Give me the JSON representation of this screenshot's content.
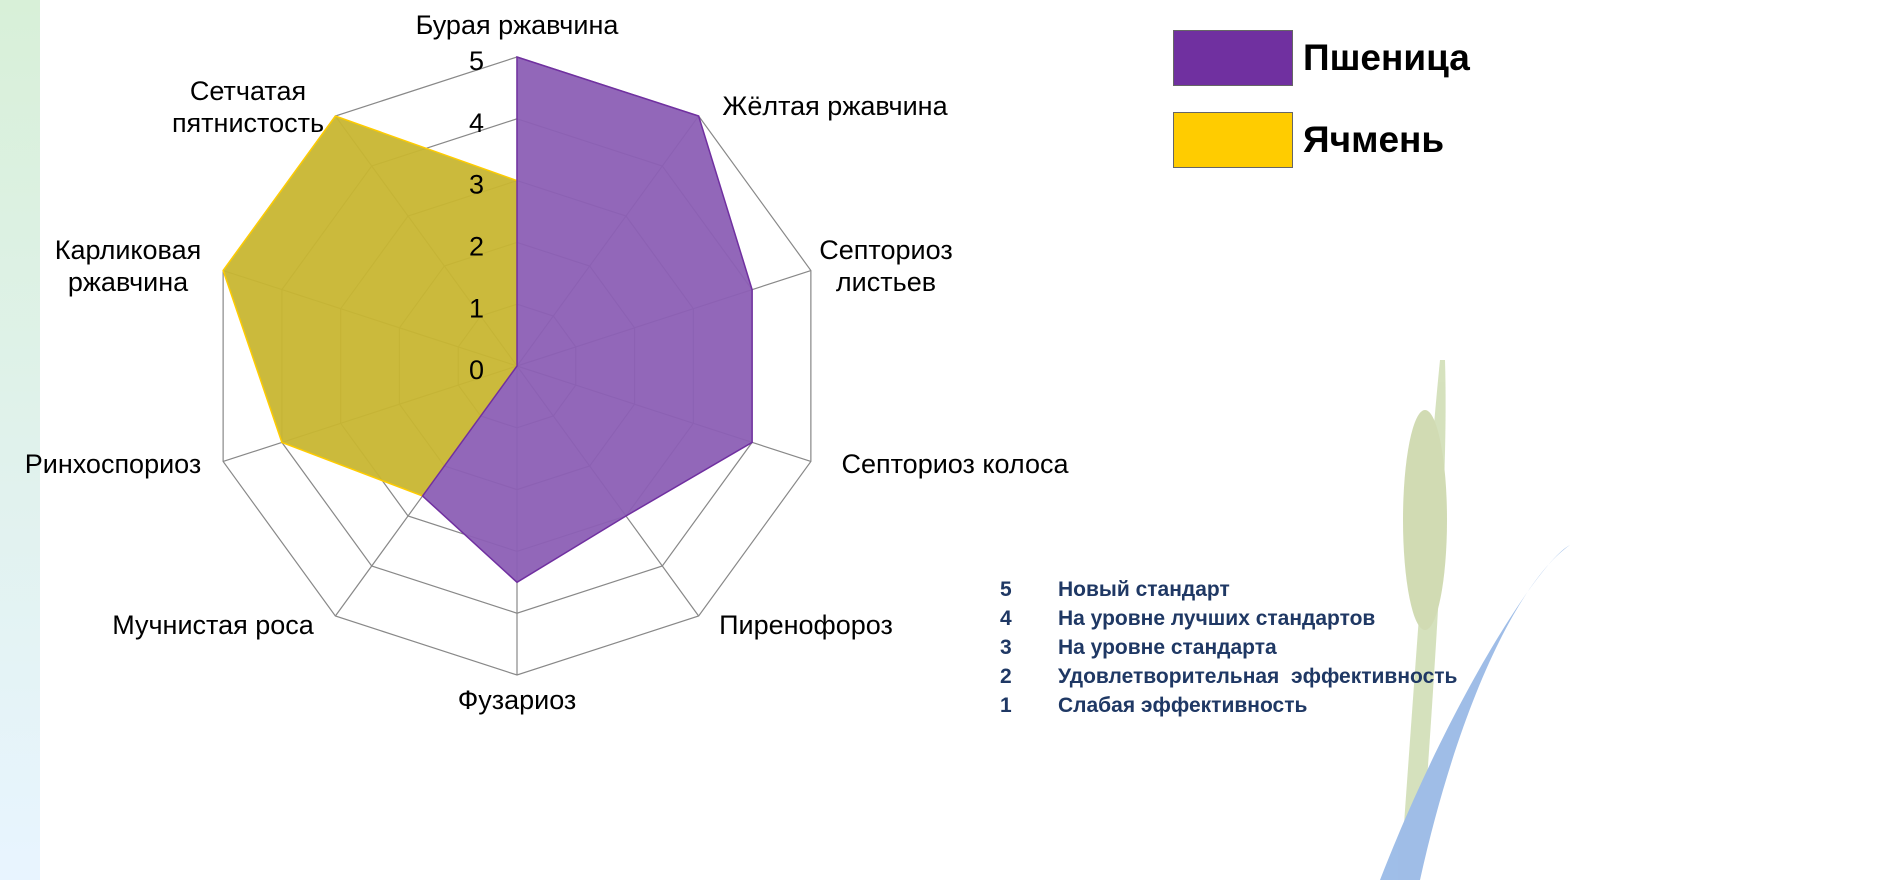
{
  "chart_data": {
    "type": "radar",
    "categories": [
      "Бурая ржавчина",
      "Жёлтая ржавчина",
      "Септориоз листьев",
      "Септориоз колоса",
      "Пиренофороз",
      "Фузариоз",
      "Мучнистая роса",
      "Ринхоспориоз",
      "Карликовая ржавчина",
      "Сетчатая пятнистость"
    ],
    "series": [
      {
        "name": "Ячмень",
        "color": "#ffcc00",
        "values": [
          3,
          0,
          0,
          0,
          0,
          0,
          2.6,
          4,
          5,
          5
        ]
      },
      {
        "name": "Пшеница",
        "color": "#7030a0",
        "values": [
          5,
          5,
          4,
          4,
          3,
          3.5,
          2.6,
          0,
          0,
          0
        ]
      }
    ],
    "ylim": [
      0,
      5
    ],
    "yticks": [
      0,
      1,
      2,
      3,
      4,
      5
    ],
    "grid": true
  },
  "score_notes": [
    {
      "score": "5",
      "text": "Новый стандарт"
    },
    {
      "score": "4",
      "text": "На уровне лучших стандартов"
    },
    {
      "score": "3",
      "text": "На уровне стандарта"
    },
    {
      "score": "2",
      "text": "Удовлетворительная  эффективность"
    },
    {
      "score": "1",
      "text": "Слабая эффективность"
    }
  ]
}
